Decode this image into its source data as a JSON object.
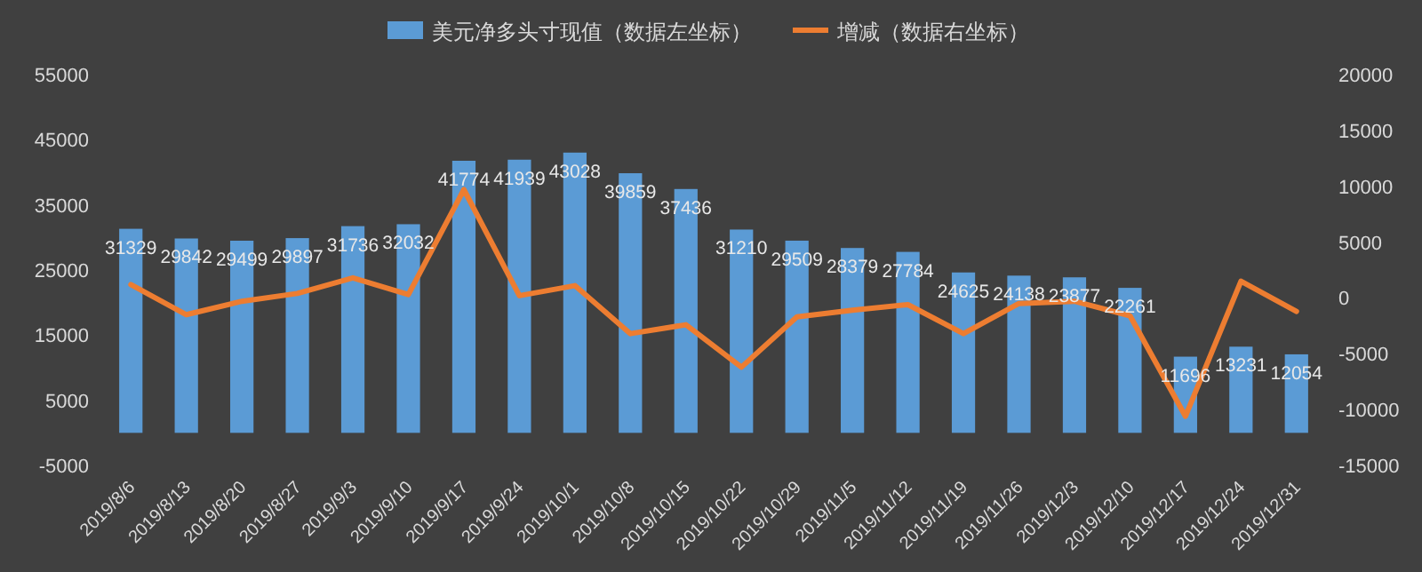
{
  "chart_data": {
    "type": "bar",
    "categories": [
      "2019/8/6",
      "2019/8/13",
      "2019/8/20",
      "2019/8/27",
      "2019/9/3",
      "2019/9/10",
      "2019/9/17",
      "2019/9/24",
      "2019/10/1",
      "2019/10/8",
      "2019/10/15",
      "2019/10/22",
      "2019/10/29",
      "2019/11/5",
      "2019/11/12",
      "2019/11/19",
      "2019/11/26",
      "2019/12/3",
      "2019/12/10",
      "2019/12/17",
      "2019/12/24",
      "2019/12/31"
    ],
    "series": [
      {
        "name": "美元净多头寸现值（数据左坐标）",
        "color": "#5b9bd5",
        "values": [
          31329,
          29842,
          29499,
          29897,
          31736,
          32032,
          41774,
          41939,
          43028,
          39859,
          37436,
          31210,
          29509,
          28379,
          27784,
          24625,
          24138,
          23877,
          22261,
          11696,
          13231,
          12054
        ],
        "value_labels": [
          "31329",
          "29842",
          "29499",
          "29897",
          "31736",
          "32032",
          "41774",
          "41939",
          "43028",
          "39859",
          "37436",
          "31210",
          "29509",
          "28379",
          "27784",
          "24625",
          "24138",
          "23877",
          "22261",
          "11696",
          "13231",
          "12054"
        ]
      },
      {
        "name": "增减（数据右坐标）",
        "type": "line",
        "axis": "y2",
        "color": "#ed7d31",
        "values": [
          1200,
          -1500,
          -300,
          400,
          1800,
          300,
          9700,
          200,
          1100,
          -3200,
          -2400,
          -6200,
          -1700,
          -1100,
          -600,
          -3200,
          -500,
          -300,
          -1600,
          -10600,
          1500,
          -1200
        ]
      }
    ],
    "ylim": [
      -5000,
      55000
    ],
    "yticks": [
      -5000,
      5000,
      15000,
      25000,
      35000,
      45000,
      55000
    ],
    "y2lim": [
      -15000,
      20000
    ],
    "y2ticks": [
      -15000,
      -10000,
      -5000,
      0,
      5000,
      10000,
      15000,
      20000
    ],
    "legend": "top",
    "grid": false,
    "marker": "none",
    "line_style": "solid"
  }
}
